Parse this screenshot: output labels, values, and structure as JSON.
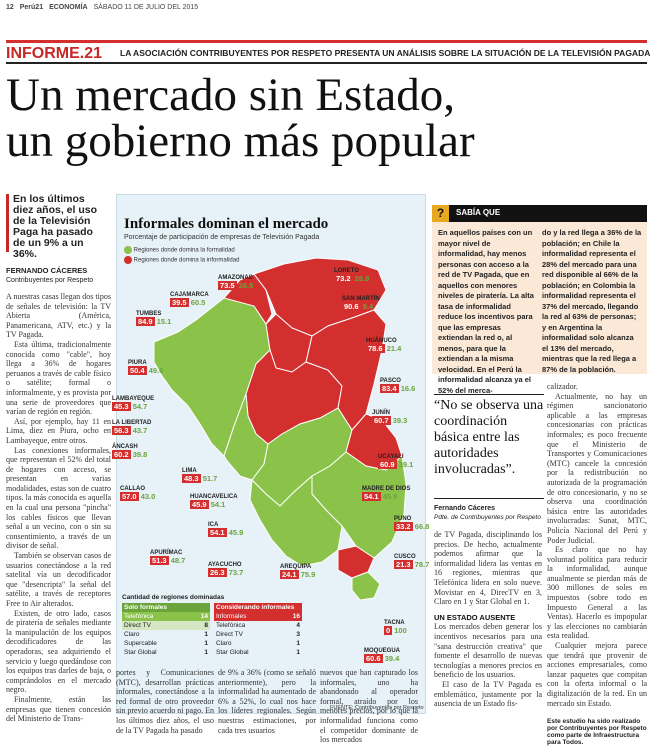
{
  "topbar": {
    "page": "12",
    "paper": "Perú21",
    "section": "ECONOMÍA",
    "date": "SÁBADO 11 DE JULIO DEL 2015"
  },
  "section": {
    "label": "INFORME.21",
    "subtitle": "LA ASOCIACIÓN CONTRIBUYENTES POR RESPETO PRESENTA UN ANÁLISIS SOBRE LA SITUACIÓN DE LA TELEVISIÓN PAGADA"
  },
  "headline": {
    "line1": "Un mercado sin Estado,",
    "line2": "un gobierno más popular"
  },
  "dek": "En los últimos diez años, el uso de la Televisión Paga ha pasado de un 9% a un 36%.",
  "byline": {
    "name": "FERNANDO CÁCERES",
    "org": "Contribuyentes por Respeto"
  },
  "col1": {
    "p1": "A nuestras casas llegan dos tipos de señales de televisión: la TV Abierta (América, Panamericana, ATV, etc.) y la TV Pagada.",
    "p2": "Esta última, tradicionalmente conocida como \"cable\", hoy llega a 36% de hogares peruanos a través de cable físico o satélite; formal o informalmente, y es provista por una serie de proveedores que varían de región en región.",
    "p3": "Así, por ejemplo, hay 11 en Lima, diez en Piura, ocho en Lambayeque, entre otros.",
    "p4": "Las conexiones informales, que representan el 52% del total de hogares con acceso, se presentan en varias modalidades, estas son de cuatro tipos. la más conocida es aquella en la cual una persona \"pincha\" los cables físicos que llevan señal a un vecino, con o sin su consentimiento, a través de un divisor de señal.",
    "p5": "También se observan casos de usuarios conectándose a la red satelital vía un decodificador que \"desencripta\" la señal del satélite, a través de receptores Free to Air alterados.",
    "p6": "Existen, de otro lado, casos de piratería de señales mediante la manipulación de los equipos decodificadores de las operadoras, sea adquiriendo el servicio y luego quedándose con los equipos tras darles de baja, o comprándolos en el mercado negro.",
    "p7": "Finalmente, están las empresas que tienen concesión del Ministerio de Trans-"
  },
  "map": {
    "title": "Informales dominan el mercado",
    "subtitle": "Porcentaje de participación de empresas de Televisión Pagada",
    "legend_formal": "Regiones donde domina la formalidad",
    "legend_informal": "Regiones donde domina la informalidad",
    "regions": [
      {
        "name": "AMAZONAS",
        "informal": "73.5",
        "formal": "26.5"
      },
      {
        "name": "LORETO",
        "informal": "73.2",
        "formal": "26.9"
      },
      {
        "name": "CAJAMARCA",
        "informal": "39.5",
        "formal": "60.5"
      },
      {
        "name": "TUMBES",
        "informal": "84.9",
        "formal": "15.1"
      },
      {
        "name": "SAN MARTÍN",
        "informal": "90.6",
        "formal": "9.4"
      },
      {
        "name": "HUÁNUCO",
        "informal": "78.6",
        "formal": "21.4"
      },
      {
        "name": "PIURA",
        "informal": "50.4",
        "formal": "49.6"
      },
      {
        "name": "LAMBAYEQUE",
        "informal": "45.3",
        "formal": "54.7"
      },
      {
        "name": "PASCO",
        "informal": "83.4",
        "formal": "16.6"
      },
      {
        "name": "LA LIBERTAD",
        "informal": "56.3",
        "formal": "43.7"
      },
      {
        "name": "JUNÍN",
        "informal": "60.7",
        "formal": "39.3"
      },
      {
        "name": "ÁNCASH",
        "informal": "60.2",
        "formal": "39.8"
      },
      {
        "name": "UCAYALI",
        "informal": "60.9",
        "formal": "39.1"
      },
      {
        "name": "LIMA",
        "informal": "48.3",
        "formal": "51.7"
      },
      {
        "name": "CALLAO",
        "informal": "57.0",
        "formal": "43.0"
      },
      {
        "name": "HUANCAVELICA",
        "informal": "45.9",
        "formal": "54.1"
      },
      {
        "name": "MADRE DE DIOS",
        "informal": "54.1",
        "formal": "45.9"
      },
      {
        "name": "ICA",
        "informal": "54.1",
        "formal": "45.9"
      },
      {
        "name": "PUNO",
        "informal": "33.2",
        "formal": "66.8"
      },
      {
        "name": "APURÍMAC",
        "informal": "51.3",
        "formal": "48.7"
      },
      {
        "name": "AYACUCHO",
        "informal": "26.3",
        "formal": "73.7"
      },
      {
        "name": "CUSCO",
        "informal": "21.3",
        "formal": "78.7"
      },
      {
        "name": "AREQUIPA",
        "informal": "24.1",
        "formal": "75.9"
      },
      {
        "name": "TACNA",
        "informal": "0",
        "formal": "100"
      },
      {
        "name": "MOQUEGUA",
        "informal": "60.6",
        "formal": "39.4"
      }
    ],
    "stats_title": "Cantidad de regiones dominadas",
    "stats_formal_head": "Solo formales",
    "stats_informal_head": "Considerando informales",
    "stats_formal": [
      {
        "name": "Telefónica",
        "n": "14"
      },
      {
        "name": "Direct TV",
        "n": "8"
      },
      {
        "name": "Claro",
        "n": "1"
      },
      {
        "name": "Supercable",
        "n": "1"
      },
      {
        "name": "Star Global",
        "n": "1"
      }
    ],
    "stats_informal": [
      {
        "name": "Informales",
        "n": "16"
      },
      {
        "name": "Telefónica",
        "n": "4"
      },
      {
        "name": "Direct TV",
        "n": "3"
      },
      {
        "name": "Claro",
        "n": "1"
      },
      {
        "name": "Star Global",
        "n": "1"
      }
    ],
    "source": "FUENTE: Contribuyentes por Respeto"
  },
  "col2": "portes y Comunicaciones (MTC), desarrollan prácticas informales, conectándose a la red formal de otro proveedor sin previo acuerdo ni pago. En los últimos diez años, el uso de la TV Pagada ha pasado",
  "col3": "de 9% a 36% (como se señaló anteriormente), pero la informalidad ha aumentado de 6% a 52%, lo cual nos hace los líderes regionales. Según nuestras estimaciones, por cada tres usuarios",
  "col4": "nuevos que han capturado los informales, uno ha abandonado al operador formal, atraído por los menores precios, por lo que la informalidad funciona como el competidor dominante de los mercados",
  "sabia": {
    "title": "SABÍA QUE",
    "left": "En aquellos países con un mayor nivel de informalidad, hay menos personas con acceso a la red de TV Pagada, que en aquellos con menores niveles de piratería. La alta tasa de informalidad reduce los incentivos para que las empresas extiendan la red o, al menos, para que la extiendan a la misma velocidad. En el Perú la informalidad alcanza ya el 52% del merca-",
    "right": "do y la red llega a 36% de la población; en Chile la informalidad representa el 28% del mercado para una red disponible al 66% de la población; en Colombia la informalidad representa el 37% del mercado, llegando la red al 63% de personas; y en Argentina la informalidad solo alcanza el 13% del mercado, mientras que la red llega a 87% de la población."
  },
  "quote": {
    "text": "“No se observa una coordinación básica entre las autoridades involucradas”.",
    "name": "Fernando Cáceres",
    "role": "Pdte. de Contribuyentes por Respeto"
  },
  "col5": {
    "p1": "de TV Pagada, disciplinando los precios. De hecho, actualmente podemos afirmar que la informalidad lidera las ventas en 16 regiones, mientras que Telefónica lidera en solo nueve. Movistar en 4, DirecTV en 3, Claro en 1 y Star Global en 1.",
    "subhead": "UN ESTADO AUSENTE",
    "p2": "Los mercados deben generar los incentivos necesarios para una \"sana destrucción creativa\" que fomente el desarrollo de nuevas tecnologías a menores precios en beneficio de los usuarios.",
    "p3": "El caso de la TV Pagada es emblemático, justamente por la ausencia de un Estado fis-"
  },
  "col6": {
    "p1": "calizador.",
    "p2": "Actualmente, no hay un régimen sancionatorio aplicable a las empresas concesionarias con prácticas informales; es poco frecuente que el Ministerio de Transportes y Comunicaciones (MTC) cancele la concesión por la redistribución no autorizada de la programación de otro concesionario, y no se observa una coordinación básica entre las autoridades involucradas: Sunat, MTC, Policía Nacional del Perú y Poder Judicial.",
    "p3": "Es claro que no hay voluntad política para reducir la informalidad, aunque anualmente se pierdan más de 300 millones de soles en impuestos (sobre todo en Impuesto General a las Ventas). Hacerlo es impopular y las elecciones no cambiarán esta realidad.",
    "p4": "Cualquier mejora parece que tendrá que provenir de acciones empresariales, como lanzar paquetes que compitan con la oferta informal o la digitalización de la red. En un mercado sin Estado.",
    "note": "Este estudio ha sido realizado por Contribuyentes por Respeto como parte de Infraestructura para Todos."
  },
  "colors": {
    "accent_red": "#d32f2f",
    "formal_green": "#8bc34a",
    "informal_red": "#d32f2f",
    "map_bg": "#e6f1f8",
    "sabia_bg": "#fbe8d7"
  }
}
